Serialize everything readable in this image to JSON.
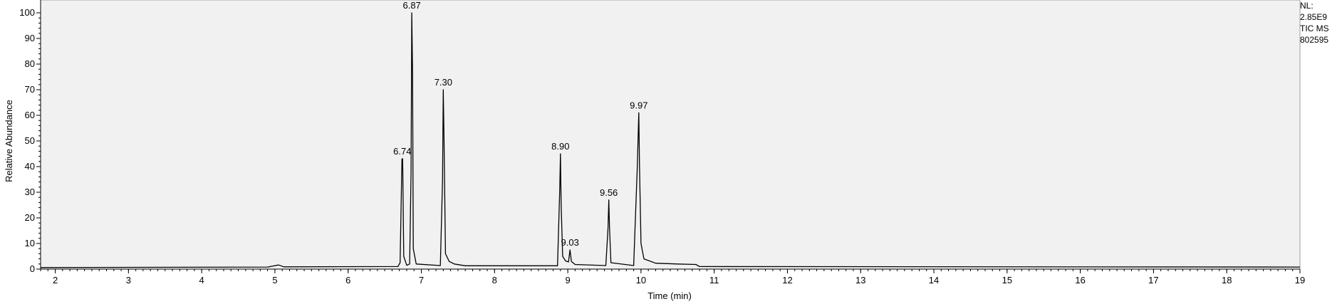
{
  "chart_data": {
    "type": "line",
    "xlabel": "Time (min)",
    "ylabel": "Relative Abundance",
    "xlim": [
      1.8,
      19.0
    ],
    "ylim": [
      0,
      100
    ],
    "x_ticks": [
      2,
      3,
      4,
      5,
      6,
      7,
      8,
      9,
      10,
      11,
      12,
      13,
      14,
      15,
      16,
      17,
      18,
      19
    ],
    "y_ticks": [
      0,
      10,
      20,
      30,
      40,
      50,
      60,
      70,
      80,
      90,
      100
    ],
    "grid": false,
    "series": [
      {
        "points": [
          [
            1.8,
            0.6
          ],
          [
            4.9,
            0.8
          ],
          [
            5.05,
            1.6
          ],
          [
            5.12,
            0.9
          ],
          [
            6.68,
            1.0
          ],
          [
            6.71,
            2.5
          ],
          [
            6.735,
            43.0
          ],
          [
            6.745,
            43.0
          ],
          [
            6.76,
            5.0
          ],
          [
            6.8,
            1.5
          ],
          [
            6.84,
            2.0
          ],
          [
            6.86,
            38.0
          ],
          [
            6.87,
            100.0
          ],
          [
            6.88,
            76.0
          ],
          [
            6.89,
            8.0
          ],
          [
            6.93,
            2.0
          ],
          [
            7.26,
            1.4
          ],
          [
            7.29,
            35.0
          ],
          [
            7.3,
            70.0
          ],
          [
            7.31,
            50.0
          ],
          [
            7.33,
            6.0
          ],
          [
            7.38,
            3.0
          ],
          [
            7.45,
            2.0
          ],
          [
            7.6,
            1.3
          ],
          [
            8.86,
            1.3
          ],
          [
            8.89,
            31.0
          ],
          [
            8.9,
            45.0
          ],
          [
            8.91,
            25.0
          ],
          [
            8.93,
            5.0
          ],
          [
            8.97,
            3.2
          ],
          [
            9.01,
            2.8
          ],
          [
            9.03,
            7.5
          ],
          [
            9.05,
            3.0
          ],
          [
            9.1,
            1.8
          ],
          [
            9.52,
            1.4
          ],
          [
            9.55,
            16.0
          ],
          [
            9.56,
            27.0
          ],
          [
            9.57,
            16.0
          ],
          [
            9.59,
            2.5
          ],
          [
            9.9,
            1.4
          ],
          [
            9.95,
            40.0
          ],
          [
            9.97,
            61.0
          ],
          [
            9.98,
            40.0
          ],
          [
            10.0,
            10.0
          ],
          [
            10.04,
            4.0
          ],
          [
            10.2,
            2.3
          ],
          [
            10.5,
            2.0
          ],
          [
            10.75,
            1.8
          ],
          [
            10.8,
            1.0
          ],
          [
            19.0,
            0.8
          ]
        ]
      }
    ],
    "peak_labels": [
      {
        "x": 6.74,
        "y": 43,
        "text": "6.74"
      },
      {
        "x": 6.87,
        "y": 100,
        "text": "6.87"
      },
      {
        "x": 7.3,
        "y": 70,
        "text": "7.30"
      },
      {
        "x": 8.9,
        "y": 45,
        "text": "8.90"
      },
      {
        "x": 9.03,
        "y": 7.5,
        "text": "9.03"
      },
      {
        "x": 9.56,
        "y": 27,
        "text": "9.56"
      },
      {
        "x": 9.97,
        "y": 61,
        "text": "9.97"
      }
    ]
  },
  "info": {
    "line1": "NL:",
    "line2": "2.85E9",
    "line3": "TIC  MS",
    "line4": "802595"
  }
}
